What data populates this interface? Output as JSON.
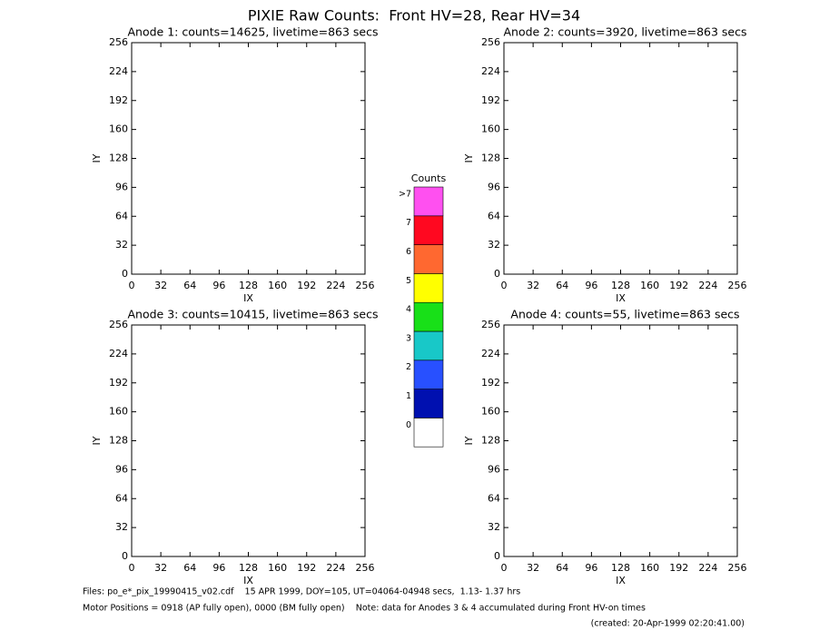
{
  "title": "PIXIE Raw Counts:  Front HV=28, Rear HV=34",
  "chart_data": [
    {
      "type": "heatmap",
      "title": "Anode 1: counts=14625, livetime=863 secs",
      "xlabel": "IX",
      "ylabel": "IY",
      "xlim": [
        0,
        256
      ],
      "ylim": [
        0,
        256
      ],
      "xticks": [
        0,
        32,
        64,
        96,
        128,
        160,
        192,
        224,
        256
      ],
      "yticks": [
        0,
        32,
        64,
        96,
        128,
        160,
        192,
        224,
        256
      ]
    },
    {
      "type": "heatmap",
      "title": "Anode 2: counts=3920, livetime=863 secs",
      "xlabel": "IX",
      "ylabel": "IY",
      "xlim": [
        0,
        256
      ],
      "ylim": [
        0,
        256
      ],
      "xticks": [
        0,
        32,
        64,
        96,
        128,
        160,
        192,
        224,
        256
      ],
      "yticks": [
        0,
        32,
        64,
        96,
        128,
        160,
        192,
        224,
        256
      ]
    },
    {
      "type": "heatmap",
      "title": "Anode 3: counts=10415, livetime=863 secs",
      "xlabel": "IX",
      "ylabel": "IY",
      "xlim": [
        0,
        256
      ],
      "ylim": [
        0,
        256
      ],
      "xticks": [
        0,
        32,
        64,
        96,
        128,
        160,
        192,
        224,
        256
      ],
      "yticks": [
        0,
        32,
        64,
        96,
        128,
        160,
        192,
        224,
        256
      ]
    },
    {
      "type": "heatmap",
      "title": "Anode 4: counts=55, livetime=863 secs",
      "xlabel": "IX",
      "ylabel": "IY",
      "xlim": [
        0,
        256
      ],
      "ylim": [
        0,
        256
      ],
      "xticks": [
        0,
        32,
        64,
        96,
        128,
        160,
        192,
        224,
        256
      ],
      "yticks": [
        0,
        32,
        64,
        96,
        128,
        160,
        192,
        224,
        256
      ]
    }
  ],
  "colorbar": {
    "title": "Counts",
    "categories": [
      "0",
      "1",
      "2",
      "3",
      "4",
      "5",
      "6",
      "7",
      ">7"
    ],
    "colors": [
      "#ffffff",
      "#0010b0",
      "#2850ff",
      "#18c8c8",
      "#18e018",
      "#ffff00",
      "#ff6830",
      "#ff0820",
      "#ff50f0"
    ]
  },
  "footer": {
    "files": "Files: po_e*_pix_19990415_v02.cdf    15 APR 1999, DOY=105, UT=04064-04948 secs,  1.13- 1.37 hrs",
    "motor": "Motor Positions = 0918 (AP fully open), 0000 (BM fully open)    Note: data for Anodes 3 & 4 accumulated during Front HV-on times",
    "created": "(created: 20-Apr-1999 02:20:41.00)"
  }
}
